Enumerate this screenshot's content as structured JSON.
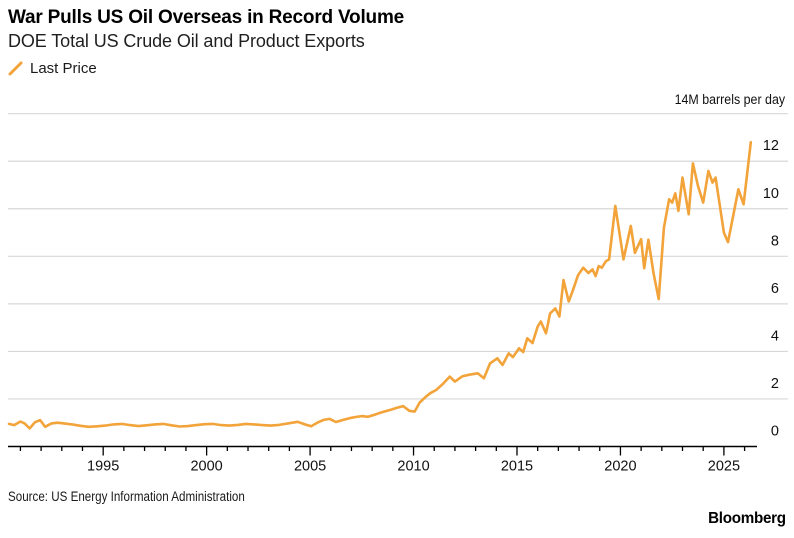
{
  "header": {
    "title": "War Pulls US Oil Overseas in Record Volume",
    "subtitle": "DOE Total US Crude Oil and Product Exports"
  },
  "legend": {
    "label": "Last Price"
  },
  "source": "Source: US Energy Information Administration",
  "brand": "Bloomberg",
  "colors": {
    "line": "#F2A33A",
    "grid": "#D8D8D8",
    "axis": "#000000",
    "text": "#1a1a1a",
    "background": "#FFFFFF"
  },
  "chart_data": {
    "type": "line",
    "title": "War Pulls US Oil Overseas in Record Volume",
    "subtitle": "DOE Total US Crude Oil and Product Exports",
    "unit_label": "14M barrels per day",
    "ylabel": "M barrels per day",
    "xlabel": "",
    "grid": "horizontal",
    "legend_position": "top-left",
    "y_axis": {
      "side": "right",
      "min": 0,
      "max": 14,
      "gridline_step": 2,
      "tick_labels": [
        12,
        10,
        8,
        6,
        4,
        2,
        0
      ]
    },
    "x_axis": {
      "min": 1990.4,
      "max": 2026.6,
      "minor_tick_step": 1,
      "labeled_ticks": [
        1995,
        2000,
        2005,
        2010,
        2015,
        2020,
        2025
      ]
    },
    "series": [
      {
        "name": "Last Price",
        "color": "#F2A33A",
        "points": [
          [
            1990.45,
            0.95
          ],
          [
            1990.7,
            0.9
          ],
          [
            1991.0,
            1.05
          ],
          [
            1991.2,
            0.97
          ],
          [
            1991.45,
            0.76
          ],
          [
            1991.7,
            1.02
          ],
          [
            1991.95,
            1.11
          ],
          [
            1992.2,
            0.83
          ],
          [
            1992.5,
            0.97
          ],
          [
            1992.8,
            1.0
          ],
          [
            1993.1,
            0.97
          ],
          [
            1993.5,
            0.93
          ],
          [
            1993.9,
            0.87
          ],
          [
            1994.3,
            0.83
          ],
          [
            1994.7,
            0.85
          ],
          [
            1995.1,
            0.88
          ],
          [
            1995.5,
            0.93
          ],
          [
            1995.9,
            0.95
          ],
          [
            1996.3,
            0.9
          ],
          [
            1996.7,
            0.86
          ],
          [
            1997.1,
            0.89
          ],
          [
            1997.5,
            0.93
          ],
          [
            1997.9,
            0.95
          ],
          [
            1998.3,
            0.89
          ],
          [
            1998.7,
            0.84
          ],
          [
            1999.1,
            0.86
          ],
          [
            1999.5,
            0.9
          ],
          [
            1999.9,
            0.94
          ],
          [
            2000.3,
            0.95
          ],
          [
            2000.7,
            0.9
          ],
          [
            2001.1,
            0.88
          ],
          [
            2001.5,
            0.91
          ],
          [
            2001.9,
            0.95
          ],
          [
            2002.3,
            0.93
          ],
          [
            2002.7,
            0.9
          ],
          [
            2003.1,
            0.88
          ],
          [
            2003.5,
            0.91
          ],
          [
            2004.0,
            0.98
          ],
          [
            2004.4,
            1.04
          ],
          [
            2004.75,
            0.93
          ],
          [
            2005.05,
            0.85
          ],
          [
            2005.35,
            1.0
          ],
          [
            2005.65,
            1.12
          ],
          [
            2005.95,
            1.16
          ],
          [
            2006.25,
            1.03
          ],
          [
            2006.6,
            1.12
          ],
          [
            2006.9,
            1.19
          ],
          [
            2007.2,
            1.24
          ],
          [
            2007.5,
            1.28
          ],
          [
            2007.8,
            1.25
          ],
          [
            2008.1,
            1.33
          ],
          [
            2008.4,
            1.42
          ],
          [
            2008.9,
            1.55
          ],
          [
            2009.2,
            1.63
          ],
          [
            2009.5,
            1.7
          ],
          [
            2009.8,
            1.5
          ],
          [
            2010.05,
            1.47
          ],
          [
            2010.3,
            1.85
          ],
          [
            2010.6,
            2.1
          ],
          [
            2010.8,
            2.24
          ],
          [
            2011.1,
            2.38
          ],
          [
            2011.45,
            2.66
          ],
          [
            2011.75,
            2.94
          ],
          [
            2012.0,
            2.73
          ],
          [
            2012.35,
            2.95
          ],
          [
            2012.7,
            3.02
          ],
          [
            2013.1,
            3.08
          ],
          [
            2013.4,
            2.87
          ],
          [
            2013.7,
            3.5
          ],
          [
            2014.05,
            3.71
          ],
          [
            2014.3,
            3.43
          ],
          [
            2014.6,
            3.92
          ],
          [
            2014.8,
            3.76
          ],
          [
            2015.1,
            4.13
          ],
          [
            2015.3,
            3.97
          ],
          [
            2015.5,
            4.55
          ],
          [
            2015.75,
            4.35
          ],
          [
            2016.0,
            5.05
          ],
          [
            2016.15,
            5.26
          ],
          [
            2016.4,
            4.76
          ],
          [
            2016.6,
            5.6
          ],
          [
            2016.85,
            5.81
          ],
          [
            2017.05,
            5.47
          ],
          [
            2017.25,
            7.0
          ],
          [
            2017.5,
            6.1
          ],
          [
            2017.7,
            6.57
          ],
          [
            2017.95,
            7.2
          ],
          [
            2018.2,
            7.52
          ],
          [
            2018.45,
            7.3
          ],
          [
            2018.65,
            7.45
          ],
          [
            2018.8,
            7.17
          ],
          [
            2018.95,
            7.59
          ],
          [
            2019.1,
            7.52
          ],
          [
            2019.3,
            7.8
          ],
          [
            2019.45,
            7.87
          ],
          [
            2019.75,
            10.12
          ],
          [
            2020.0,
            8.72
          ],
          [
            2020.15,
            7.87
          ],
          [
            2020.5,
            9.28
          ],
          [
            2020.7,
            8.15
          ],
          [
            2021.0,
            8.72
          ],
          [
            2021.15,
            7.5
          ],
          [
            2021.35,
            8.7
          ],
          [
            2021.6,
            7.3
          ],
          [
            2021.85,
            6.2
          ],
          [
            2022.1,
            9.2
          ],
          [
            2022.35,
            10.4
          ],
          [
            2022.5,
            10.26
          ],
          [
            2022.65,
            10.65
          ],
          [
            2022.8,
            9.91
          ],
          [
            2023.0,
            11.31
          ],
          [
            2023.3,
            9.77
          ],
          [
            2023.5,
            11.91
          ],
          [
            2023.75,
            10.96
          ],
          [
            2024.0,
            10.26
          ],
          [
            2024.25,
            11.59
          ],
          [
            2024.45,
            11.1
          ],
          [
            2024.6,
            11.31
          ],
          [
            2025.0,
            9.0
          ],
          [
            2025.2,
            8.6
          ],
          [
            2025.7,
            10.82
          ],
          [
            2025.95,
            10.19
          ],
          [
            2026.3,
            12.8
          ]
        ]
      }
    ]
  }
}
